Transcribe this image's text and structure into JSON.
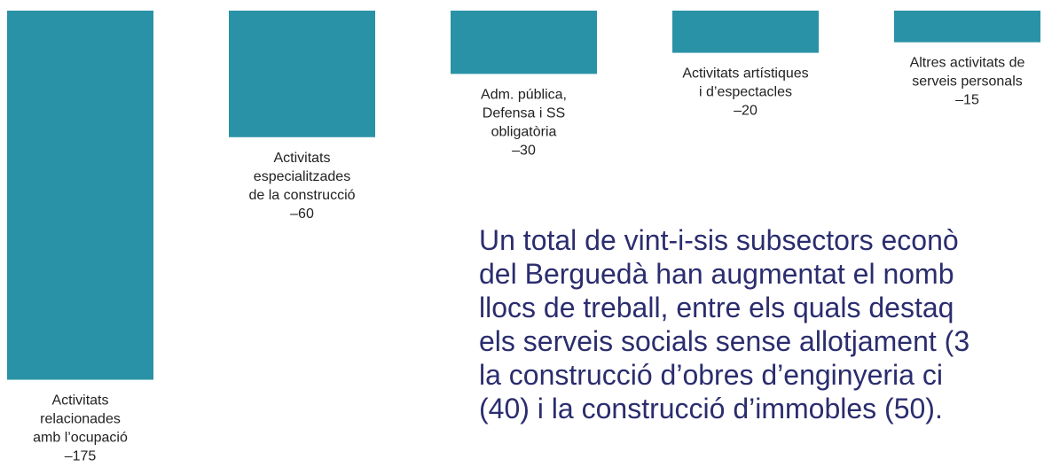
{
  "chart_data": {
    "type": "bar",
    "categories": [
      [
        "Activitats",
        "relacionades",
        "amb l’ocupació"
      ],
      [
        "Activitats",
        "especialitzades",
        "de la construcció"
      ],
      [
        "Adm. pública,",
        "Defensa i SS",
        "obligatòria"
      ],
      [
        "Activitats artístiques",
        "i d’espectacles"
      ],
      [
        "Altres activitats de",
        "serveis personals"
      ]
    ],
    "values": [
      -175,
      -60,
      -30,
      -20,
      -15
    ],
    "value_labels": [
      "–175",
      "–60",
      "–30",
      "–20",
      "–15"
    ],
    "color": "#2a92a6"
  },
  "paragraph": [
    "Un total de vint-i-sis subsectors econò",
    "del Berguedà han augmentat el nomb",
    "llocs de treball, entre els quals destaq",
    "els serveis socials sense allotjament (3",
    "la construcció d’obres d’enginyeria ci",
    "(40) i la construcció d’immobles (50)."
  ]
}
